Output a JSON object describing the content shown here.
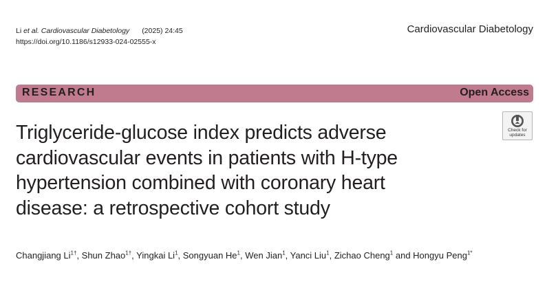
{
  "header": {
    "citation_authors": "Li ",
    "citation_etal": "et al.",
    "citation_journal": " Cardiovascular Diabetology",
    "citation_year_volume": "(2025) 24:45",
    "doi": "https://doi.org/10.1186/s12933-024-02555-x",
    "journal_name": "Cardiovascular Diabetology"
  },
  "banner": {
    "article_type": "RESEARCH",
    "access": "Open Access",
    "color": "#c17b8f"
  },
  "article": {
    "title_lines": [
      "Triglyceride-glucose index predicts adverse",
      "cardiovascular events in patients with H-type",
      "hypertension combined with coronary heart",
      "disease: a retrospective cohort study"
    ]
  },
  "check_badge": {
    "icon": "check-for-updates-icon",
    "label": "Check for\nupdates"
  },
  "authors": [
    {
      "name": "Changjiang Li",
      "sup": "1†",
      "sep": ", "
    },
    {
      "name": "Shun Zhao",
      "sup": "1†",
      "sep": ", "
    },
    {
      "name": "Yingkai Li",
      "sup": "1",
      "sep": ", "
    },
    {
      "name": "Songyuan He",
      "sup": "1",
      "sep": ", "
    },
    {
      "name": "Wen Jian",
      "sup": "1",
      "sep": ", "
    },
    {
      "name": "Yanci Liu",
      "sup": "1",
      "sep": ", "
    },
    {
      "name": "Zichao Cheng",
      "sup": "1",
      "sep": " and "
    },
    {
      "name": "Hongyu Peng",
      "sup": "1*",
      "sep": ""
    }
  ]
}
